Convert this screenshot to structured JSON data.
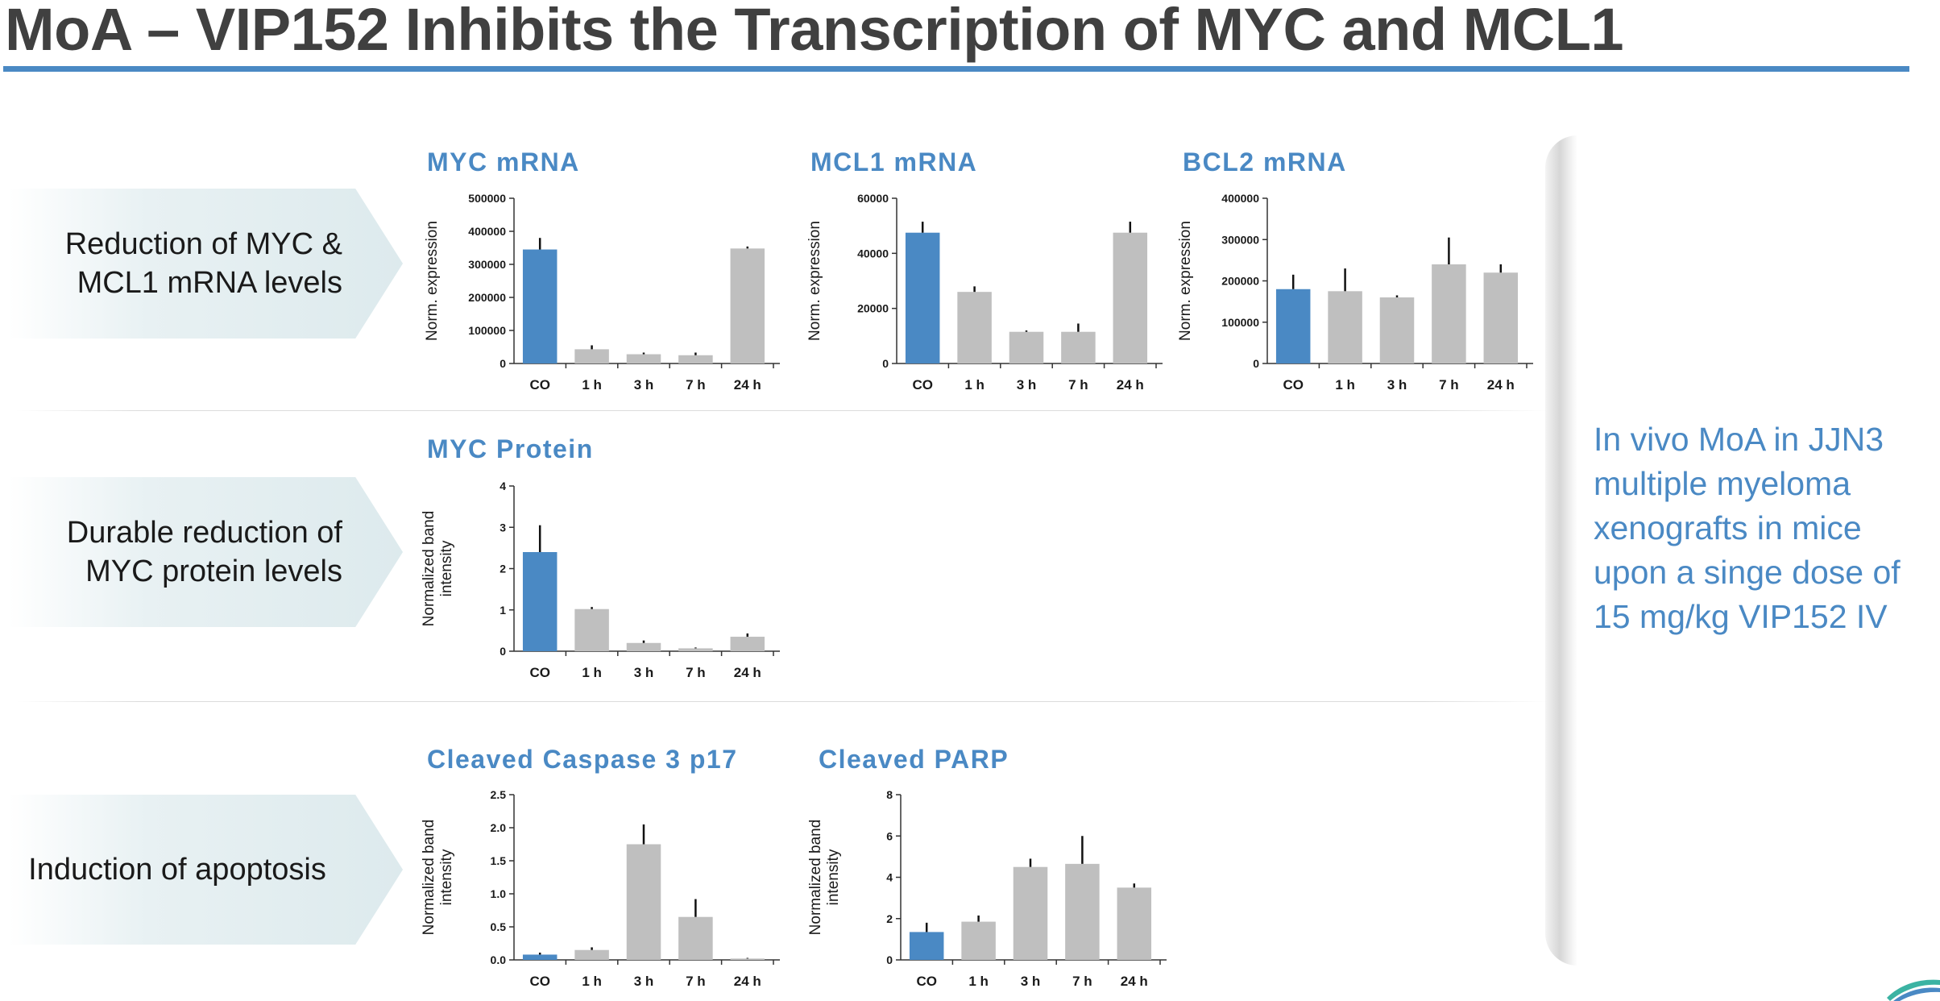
{
  "page_title": "MoA – VIP152 Inhibits the Transcription of MYC and MCL1",
  "callouts": [
    "Reduction of MYC & MCL1 mRNA levels",
    "Durable reduction of MYC protein levels",
    "Induction of apoptosis"
  ],
  "side_text": "In vivo MoA in JJN3 multiple myeloma xenografts in mice upon a singe dose of 15 mg/kg VIP152 IV",
  "colors": {
    "accent": "#4a89c4",
    "control_bar": "#4a89c4",
    "treated_bar": "#bfbfbf"
  },
  "chart_data": [
    {
      "id": "myc-mrna",
      "type": "bar",
      "title": "MYC mRNA",
      "xlabel": "",
      "ylabel": "Norm. expression",
      "categories": [
        "CO",
        "1 h",
        "3 h",
        "7 h",
        "24 h"
      ],
      "values": [
        345000,
        43000,
        28000,
        25000,
        348000
      ],
      "errors": [
        35000,
        12000,
        5000,
        8000,
        6000
      ],
      "ylim": [
        0,
        500000
      ],
      "yticks": [
        0,
        100000,
        200000,
        300000,
        400000,
        500000
      ],
      "ytick_labels": [
        "0",
        "100000",
        "200000",
        "300000",
        "400000",
        "500000"
      ]
    },
    {
      "id": "mcl1-mrna",
      "type": "bar",
      "title": "MCL1 mRNA",
      "xlabel": "",
      "ylabel": "Norm. expression",
      "categories": [
        "CO",
        "1 h",
        "3 h",
        "7 h",
        "24 h"
      ],
      "values": [
        47500,
        26000,
        11500,
        11500,
        47500
      ],
      "errors": [
        4000,
        2000,
        500,
        3000,
        4000
      ],
      "ylim": [
        0,
        60000
      ],
      "yticks": [
        0,
        20000,
        40000,
        60000
      ],
      "ytick_labels": [
        "0",
        "20000",
        "40000",
        "60000"
      ]
    },
    {
      "id": "bcl2-mrna",
      "type": "bar",
      "title": "BCL2 mRNA",
      "xlabel": "",
      "ylabel": "Norm. expression",
      "categories": [
        "CO",
        "1 h",
        "3 h",
        "7 h",
        "24 h"
      ],
      "values": [
        180000,
        175000,
        160000,
        240000,
        220000
      ],
      "errors": [
        35000,
        55000,
        5000,
        65000,
        20000
      ],
      "ylim": [
        0,
        400000
      ],
      "yticks": [
        0,
        100000,
        200000,
        300000,
        400000
      ],
      "ytick_labels": [
        "0",
        "100000",
        "200000",
        "300000",
        "400000"
      ]
    },
    {
      "id": "myc-protein",
      "type": "bar",
      "title": "MYC Protein",
      "xlabel": "",
      "ylabel": "Normalized band intensity",
      "categories": [
        "CO",
        "1 h",
        "3 h",
        "7 h",
        "24 h"
      ],
      "values": [
        2.4,
        1.02,
        0.2,
        0.07,
        0.35
      ],
      "errors": [
        0.65,
        0.05,
        0.06,
        0.02,
        0.08
      ],
      "ylim": [
        0,
        4
      ],
      "yticks": [
        0,
        1,
        2,
        3,
        4
      ],
      "ytick_labels": [
        "0",
        "1",
        "2",
        "3",
        "4"
      ]
    },
    {
      "id": "caspase3",
      "type": "bar",
      "title": "Cleaved Caspase 3 p17",
      "xlabel": "",
      "ylabel": "Normalized band intensity",
      "categories": [
        "CO",
        "1 h",
        "3 h",
        "7 h",
        "24 h"
      ],
      "values": [
        0.08,
        0.15,
        1.75,
        0.65,
        0.02
      ],
      "errors": [
        0.03,
        0.04,
        0.3,
        0.27,
        0.01
      ],
      "ylim": [
        0,
        2.5
      ],
      "yticks": [
        0,
        0.5,
        1.0,
        1.5,
        2.0,
        2.5
      ],
      "ytick_labels": [
        "0.0",
        "0.5",
        "1.0",
        "1.5",
        "2.0",
        "2.5"
      ]
    },
    {
      "id": "parp",
      "type": "bar",
      "title": "Cleaved PARP",
      "xlabel": "",
      "ylabel": "Normalized band intensity",
      "categories": [
        "CO",
        "1 h",
        "3 h",
        "7 h",
        "24 h"
      ],
      "values": [
        1.35,
        1.85,
        4.5,
        4.65,
        3.5
      ],
      "errors": [
        0.45,
        0.3,
        0.4,
        1.35,
        0.2
      ],
      "ylim": [
        0,
        8
      ],
      "yticks": [
        0,
        2,
        4,
        6,
        8
      ],
      "ytick_labels": [
        "0",
        "2",
        "4",
        "6",
        "8"
      ]
    }
  ]
}
